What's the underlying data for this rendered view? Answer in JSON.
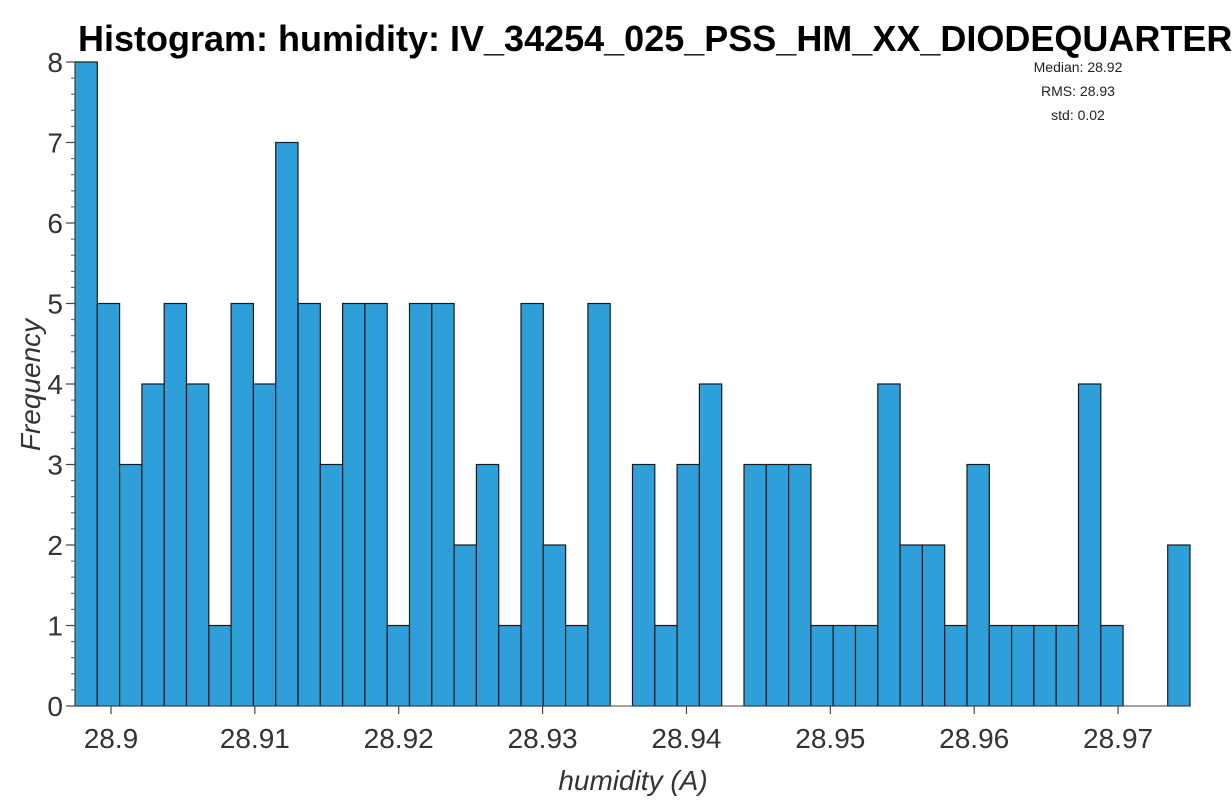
{
  "chart_data": {
    "type": "bar",
    "title": "Histogram: humidity: IV_34254_025_PSS_HM_XX_DIODEQUARTER",
    "xlabel": "humidity (A)",
    "ylabel": "Frequency",
    "xlim": [
      28.8975,
      28.975
    ],
    "ylim": [
      0,
      8
    ],
    "x_ticks": [
      "28.9",
      "28.91",
      "28.92",
      "28.93",
      "28.94",
      "28.95",
      "28.96",
      "28.97"
    ],
    "y_ticks": [
      "0",
      "1",
      "2",
      "3",
      "4",
      "5",
      "6",
      "7",
      "8"
    ],
    "bin_start": 28.8975,
    "bin_width": 0.00155,
    "values": [
      8,
      5,
      3,
      4,
      5,
      4,
      1,
      5,
      4,
      7,
      5,
      3,
      5,
      5,
      1,
      5,
      5,
      2,
      3,
      1,
      5,
      2,
      1,
      5,
      0,
      3,
      1,
      3,
      4,
      0,
      3,
      3,
      3,
      1,
      1,
      1,
      4,
      2,
      2,
      1,
      3,
      1,
      1,
      1,
      1,
      4,
      1,
      0,
      0,
      2
    ],
    "bar_color": "#2e9fd9",
    "stats": [
      "Median: 28.92",
      "RMS: 28.93",
      "std: 0.02"
    ],
    "grid": false
  }
}
